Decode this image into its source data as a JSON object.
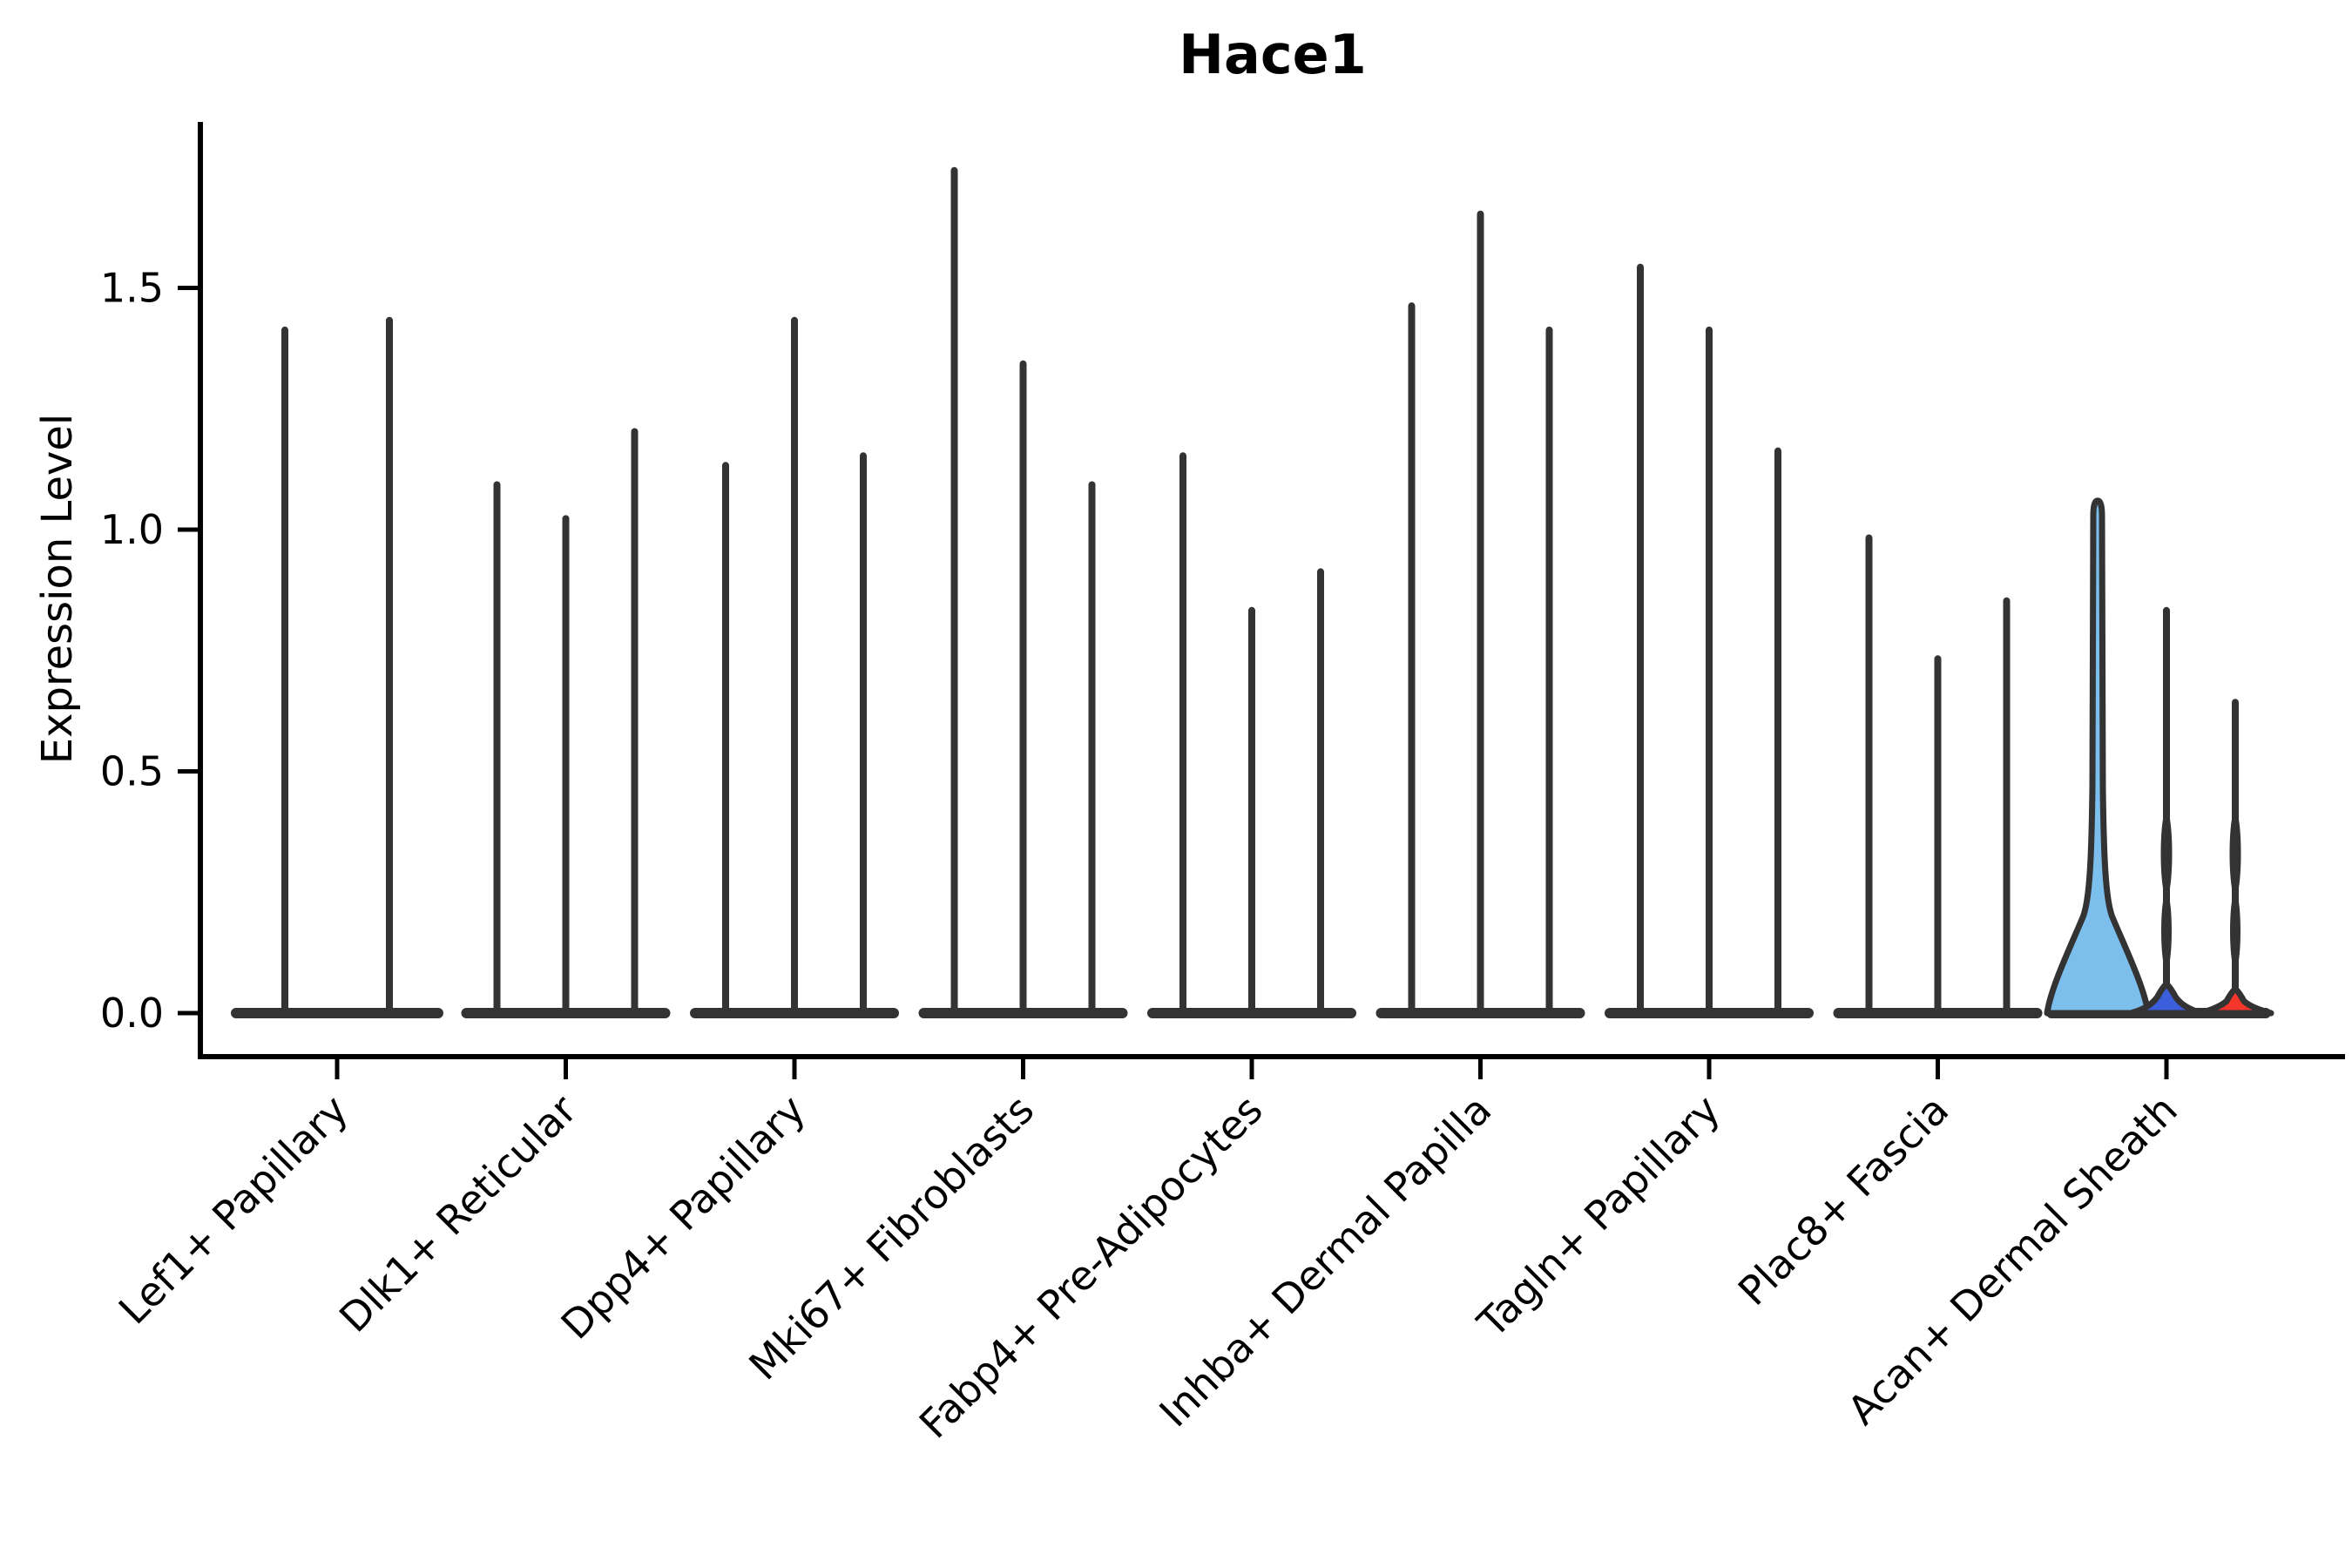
{
  "chart_data": {
    "type": "violin",
    "title": "Hace1",
    "ylabel": "Expression Level",
    "xlabel": "",
    "yticks": [
      "0.0",
      "0.5",
      "1.0",
      "1.5"
    ],
    "ytick_values": [
      0.0,
      0.5,
      1.0,
      1.5
    ],
    "ylim": [
      0,
      1.84
    ],
    "grid": false,
    "legend": "none",
    "background": "#ffffff",
    "axis_color": "#000000",
    "spike_color": "#333333",
    "categories": [
      {
        "label": "Lef1+ Papillary",
        "violins": [
          {
            "max": 1.42
          },
          {
            "max": 1.44
          }
        ]
      },
      {
        "label": "Dlk1+ Reticular",
        "violins": [
          {
            "max": 1.1
          },
          {
            "max": 1.03
          },
          {
            "max": 1.21
          }
        ]
      },
      {
        "label": "Dpp4+ Papillary",
        "violins": [
          {
            "max": 1.14
          },
          {
            "max": 1.44
          },
          {
            "max": 1.16
          }
        ]
      },
      {
        "label": "Mki67+ Fibroblasts",
        "violins": [
          {
            "max": 1.75
          },
          {
            "max": 1.35
          },
          {
            "max": 1.1
          }
        ]
      },
      {
        "label": "Fabp4+ Pre-Adipocytes",
        "violins": [
          {
            "max": 1.16
          },
          {
            "max": 0.84
          },
          {
            "max": 0.92
          }
        ]
      },
      {
        "label": "Inhba+ Dermal Papilla",
        "violins": [
          {
            "max": 1.47
          },
          {
            "max": 1.66
          },
          {
            "max": 1.42
          }
        ]
      },
      {
        "label": "Tagln+ Papillary",
        "violins": [
          {
            "max": 1.55
          },
          {
            "max": 1.42
          },
          {
            "max": 1.17
          }
        ]
      },
      {
        "label": "Plac8+ Fascia",
        "violins": [
          {
            "max": 0.99
          },
          {
            "max": 0.74
          },
          {
            "max": 0.86
          }
        ]
      },
      {
        "label": "Acan+ Dermal Sheath",
        "violins": [
          {
            "max": 1.06,
            "fill": "#7CBFED",
            "shape": "flared"
          },
          {
            "max": 0.84,
            "fill": "#3B5EDC",
            "shape": "bump",
            "bump_height": 0.06
          },
          {
            "max": 0.65,
            "fill": "#F5372B",
            "shape": "bump",
            "bump_height": 0.05
          }
        ]
      }
    ]
  }
}
